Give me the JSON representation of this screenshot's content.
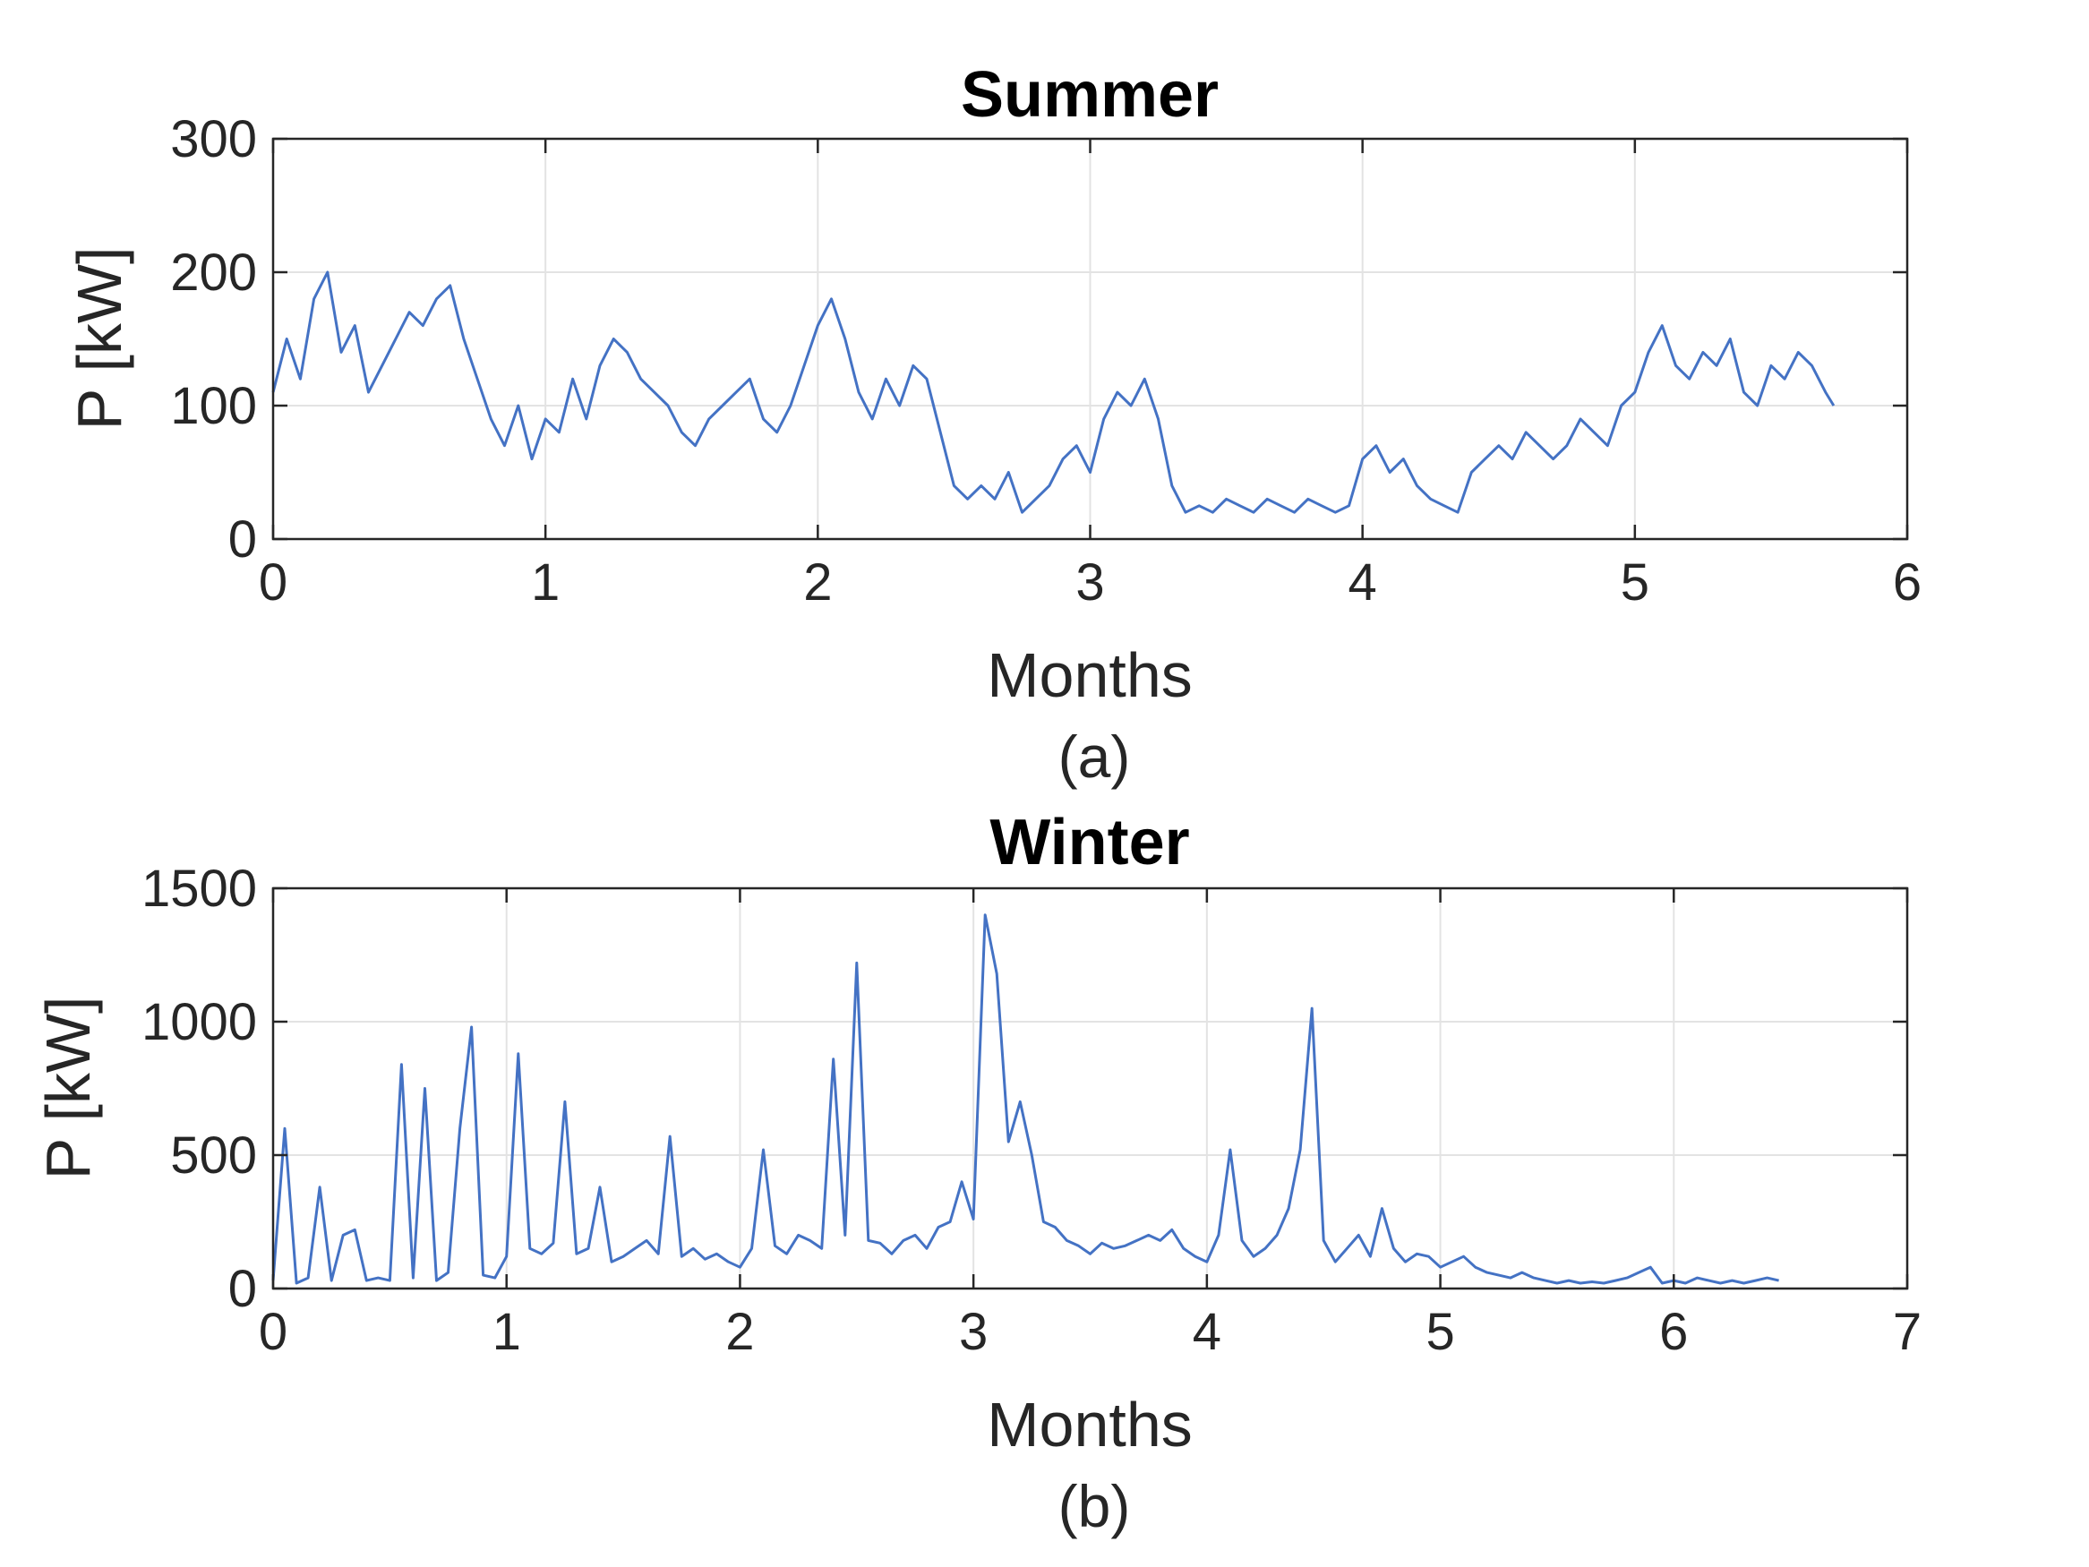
{
  "chart_data": [
    {
      "type": "line",
      "title": "Summer",
      "xlabel": "Months",
      "ylabel": "P [kW]",
      "caption": "(a)",
      "xlim": [
        0,
        6
      ],
      "ylim": [
        0,
        300
      ],
      "xticks": [
        "0",
        "1",
        "2",
        "3",
        "4",
        "5",
        "6"
      ],
      "yticks": [
        "0",
        "100",
        "200",
        "300"
      ],
      "grid": true,
      "series": [
        {
          "color": "#4472C4",
          "x": [
            0.0,
            0.05,
            0.1,
            0.15,
            0.2,
            0.25,
            0.3,
            0.35,
            0.4,
            0.45,
            0.5,
            0.55,
            0.6,
            0.65,
            0.7,
            0.75,
            0.8,
            0.85,
            0.9,
            0.95,
            1.0,
            1.05,
            1.1,
            1.15,
            1.2,
            1.25,
            1.3,
            1.35,
            1.4,
            1.45,
            1.5,
            1.55,
            1.6,
            1.65,
            1.7,
            1.75,
            1.8,
            1.85,
            1.9,
            1.95,
            2.0,
            2.05,
            2.1,
            2.15,
            2.2,
            2.25,
            2.3,
            2.35,
            2.4,
            2.45,
            2.5,
            2.55,
            2.6,
            2.65,
            2.7,
            2.75,
            2.8,
            2.85,
            2.9,
            2.95,
            3.0,
            3.05,
            3.1,
            3.15,
            3.2,
            3.25,
            3.3,
            3.35,
            3.4,
            3.45,
            3.5,
            3.55,
            3.6,
            3.65,
            3.7,
            3.75,
            3.8,
            3.85,
            3.9,
            3.95,
            4.0,
            4.05,
            4.1,
            4.15,
            4.2,
            4.25,
            4.3,
            4.35,
            4.4,
            4.45,
            4.5,
            4.55,
            4.6,
            4.65,
            4.7,
            4.75,
            4.8,
            4.85,
            4.9,
            4.95,
            5.0,
            5.05,
            5.1,
            5.15,
            5.2,
            5.25,
            5.3,
            5.35,
            5.4,
            5.45,
            5.5,
            5.55,
            5.6,
            5.65,
            5.7,
            5.73
          ],
          "y": [
            110,
            150,
            120,
            180,
            200,
            140,
            160,
            110,
            130,
            150,
            170,
            160,
            180,
            190,
            150,
            120,
            90,
            70,
            100,
            60,
            90,
            80,
            120,
            90,
            130,
            150,
            140,
            120,
            110,
            100,
            80,
            70,
            90,
            100,
            110,
            120,
            90,
            80,
            100,
            130,
            160,
            180,
            150,
            110,
            90,
            120,
            100,
            130,
            120,
            80,
            40,
            30,
            40,
            30,
            50,
            20,
            30,
            40,
            60,
            70,
            50,
            90,
            110,
            100,
            120,
            90,
            40,
            20,
            25,
            20,
            30,
            25,
            20,
            30,
            25,
            20,
            30,
            25,
            20,
            25,
            60,
            70,
            50,
            60,
            40,
            30,
            25,
            20,
            50,
            60,
            70,
            60,
            80,
            70,
            60,
            70,
            90,
            80,
            70,
            100,
            110,
            140,
            160,
            130,
            120,
            140,
            130,
            150,
            110,
            100,
            130,
            120,
            140,
            130,
            110,
            100
          ]
        }
      ]
    },
    {
      "type": "line",
      "title": "Winter",
      "xlabel": "Months",
      "ylabel": "P [kW]",
      "caption": "(b)",
      "xlim": [
        0,
        7
      ],
      "ylim": [
        0,
        1500
      ],
      "xticks": [
        "0",
        "1",
        "2",
        "3",
        "4",
        "5",
        "6",
        "7"
      ],
      "yticks": [
        "0",
        "500",
        "1000",
        "1500"
      ],
      "grid": true,
      "series": [
        {
          "color": "#4472C4",
          "x": [
            0.0,
            0.05,
            0.1,
            0.15,
            0.2,
            0.25,
            0.3,
            0.35,
            0.4,
            0.45,
            0.5,
            0.55,
            0.6,
            0.65,
            0.7,
            0.75,
            0.8,
            0.85,
            0.9,
            0.95,
            1.0,
            1.05,
            1.1,
            1.15,
            1.2,
            1.25,
            1.3,
            1.35,
            1.4,
            1.45,
            1.5,
            1.55,
            1.6,
            1.65,
            1.7,
            1.75,
            1.8,
            1.85,
            1.9,
            1.95,
            2.0,
            2.05,
            2.1,
            2.15,
            2.2,
            2.25,
            2.3,
            2.35,
            2.4,
            2.45,
            2.5,
            2.55,
            2.6,
            2.65,
            2.7,
            2.75,
            2.8,
            2.85,
            2.9,
            2.95,
            3.0,
            3.05,
            3.1,
            3.15,
            3.2,
            3.25,
            3.3,
            3.35,
            3.4,
            3.45,
            3.5,
            3.55,
            3.6,
            3.65,
            3.7,
            3.75,
            3.8,
            3.85,
            3.9,
            3.95,
            4.0,
            4.05,
            4.1,
            4.15,
            4.2,
            4.25,
            4.3,
            4.35,
            4.4,
            4.45,
            4.5,
            4.55,
            4.6,
            4.65,
            4.7,
            4.75,
            4.8,
            4.85,
            4.9,
            4.95,
            5.0,
            5.05,
            5.1,
            5.15,
            5.2,
            5.25,
            5.3,
            5.35,
            5.4,
            5.45,
            5.5,
            5.55,
            5.6,
            5.65,
            5.7,
            5.75,
            5.8,
            5.85,
            5.9,
            5.95,
            6.0,
            6.05,
            6.1,
            6.15,
            6.2,
            6.25,
            6.3,
            6.35,
            6.4,
            6.45
          ],
          "y": [
            30,
            600,
            20,
            40,
            380,
            30,
            200,
            220,
            30,
            40,
            30,
            840,
            40,
            750,
            30,
            60,
            600,
            980,
            50,
            40,
            120,
            880,
            150,
            130,
            170,
            700,
            130,
            150,
            380,
            100,
            120,
            150,
            180,
            130,
            570,
            120,
            150,
            110,
            130,
            100,
            80,
            150,
            520,
            160,
            130,
            200,
            180,
            150,
            860,
            200,
            1220,
            180,
            170,
            130,
            180,
            200,
            150,
            230,
            250,
            400,
            260,
            1400,
            1180,
            550,
            700,
            500,
            250,
            230,
            180,
            160,
            130,
            170,
            150,
            160,
            180,
            200,
            180,
            220,
            150,
            120,
            100,
            200,
            520,
            180,
            120,
            150,
            200,
            300,
            520,
            1050,
            180,
            100,
            150,
            200,
            120,
            300,
            150,
            100,
            130,
            120,
            80,
            100,
            120,
            80,
            60,
            50,
            40,
            60,
            40,
            30,
            20,
            30,
            20,
            25,
            20,
            30,
            40,
            60,
            80,
            20,
            30,
            20,
            40,
            30,
            20,
            30,
            20,
            30,
            40,
            30
          ]
        }
      ]
    }
  ]
}
